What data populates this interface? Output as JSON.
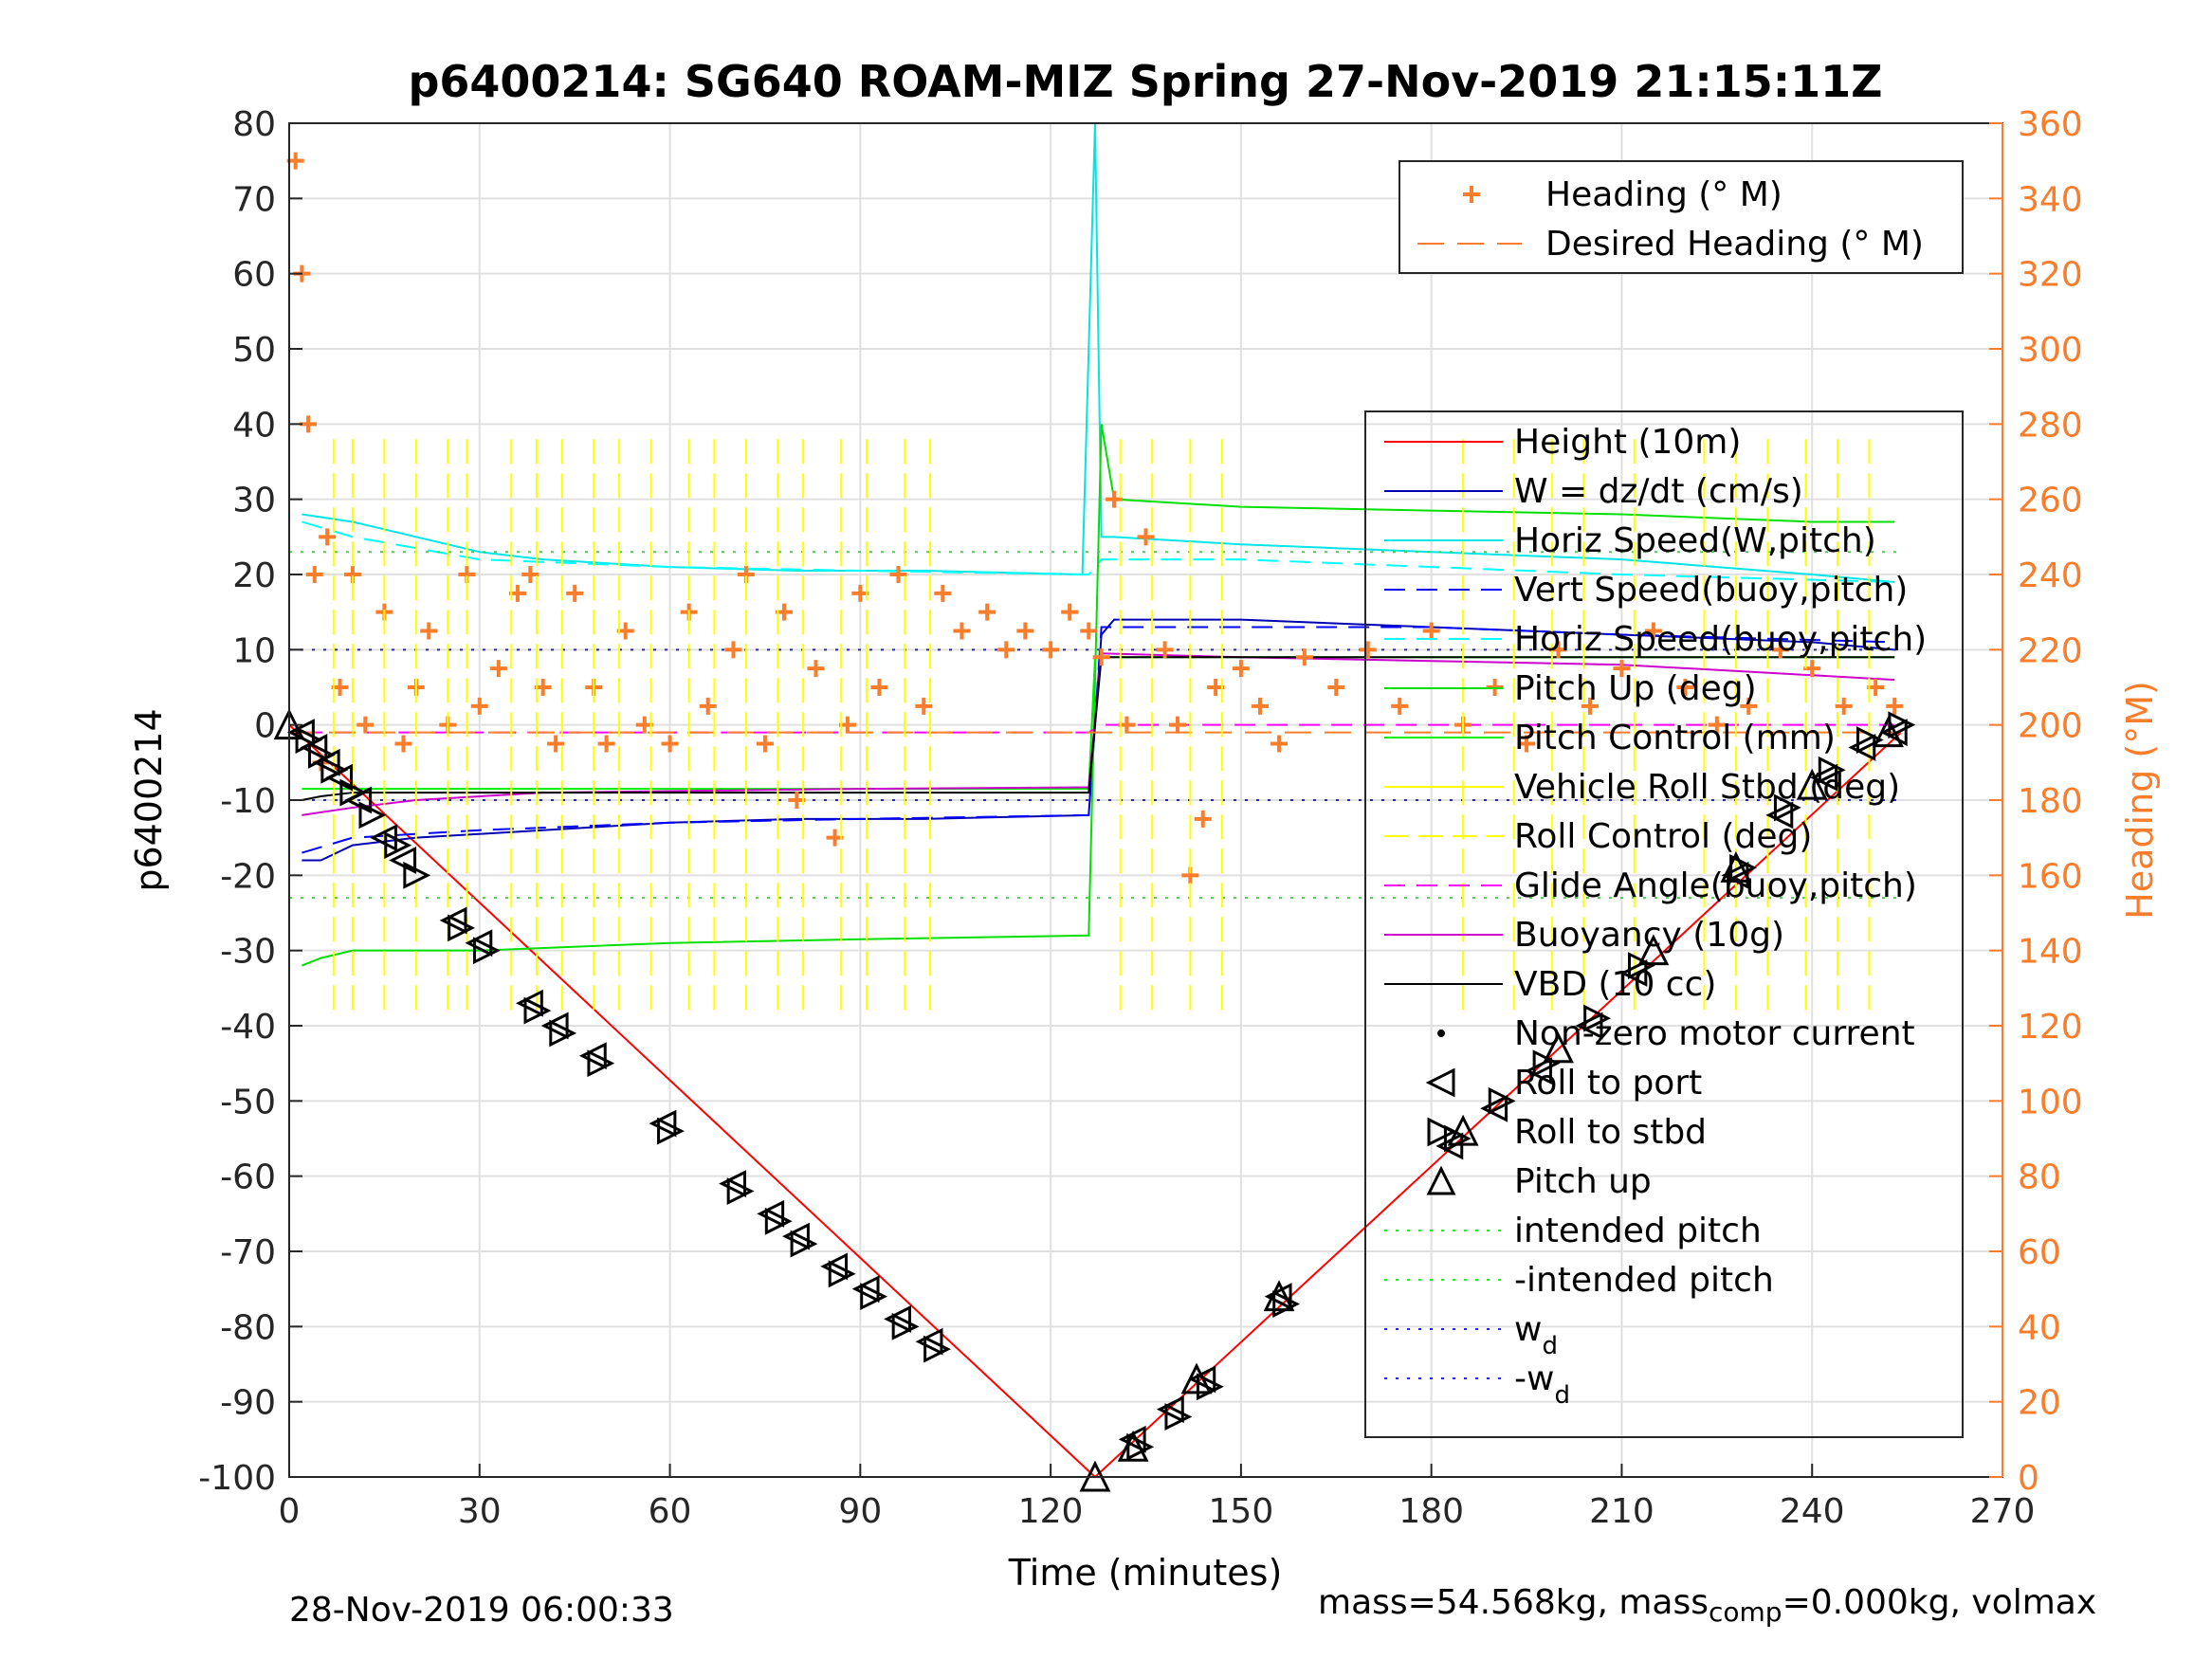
{
  "chart_data": {
    "type": "line",
    "title": "p6400214: SG640 ROAM-MIZ Spring 27-Nov-2019 21:15:11Z",
    "xlabel": "Time (minutes)",
    "ylabel": "p6400214",
    "y2label": "Heading (°M)",
    "xlim": [
      0,
      270
    ],
    "ylim": [
      -100,
      80
    ],
    "y2lim": [
      0,
      360
    ],
    "xticks": [
      0,
      30,
      60,
      90,
      120,
      150,
      180,
      210,
      240,
      270
    ],
    "yticks": [
      -100,
      -90,
      -80,
      -70,
      -60,
      -50,
      -40,
      -30,
      -20,
      -10,
      0,
      10,
      20,
      30,
      40,
      50,
      60,
      70,
      80
    ],
    "y2ticks": [
      0,
      20,
      40,
      60,
      80,
      100,
      120,
      140,
      160,
      180,
      200,
      220,
      240,
      260,
      280,
      300,
      320,
      340,
      360
    ],
    "grid": true,
    "colors": {
      "heading": "#f97d2b",
      "height": "#ff0000",
      "w": "#0000b3",
      "horiz_speed_w": "#00e5e5",
      "vert_speed_buoy": "#0000ff",
      "horiz_speed_buoy": "#00ffff",
      "pitch": "#00e000",
      "pitch_control": "#00ee00",
      "roll": "#ffff00",
      "glide": "#ff00ff",
      "buoyancy": "#cc00cc",
      "vbd": "#000000",
      "intended_pitch": "#33dd33",
      "wd": "#2222dd",
      "markers": "#000000"
    },
    "legend_heading": {
      "placement": "top-right",
      "entries": [
        "Heading (° M)",
        "Desired Heading (° M)"
      ]
    },
    "legend_main": {
      "placement": "right",
      "entries": [
        "Height (10m)",
        "W = dz/dt (cm/s)",
        "Horiz Speed(W,pitch)",
        "Vert Speed(buoy,pitch)",
        "Horiz Speed(buoy,pitch)",
        "Pitch Up (deg)",
        "Pitch Control (mm)",
        "Vehicle Roll Stbd (deg)",
        "Roll Control (deg)",
        "Glide Angle(buoy,pitch)",
        "Buoyancy (10g)",
        "VBD (10 cc)",
        "Non-zero motor current",
        "Roll to port",
        "Roll to stbd",
        "Pitch up",
        "intended pitch",
        "-intended pitch",
        "w",
        "-w"
      ],
      "subscript_d": "d"
    },
    "series": [
      {
        "name": "Height (10m)",
        "x": [
          0,
          127,
          254
        ],
        "y": [
          0,
          -100,
          -1
        ]
      },
      {
        "name": "W = dz/dt (cm/s)",
        "x": [
          2,
          5,
          10,
          20,
          40,
          60,
          80,
          100,
          126,
          128,
          130,
          150,
          180,
          210,
          240,
          253
        ],
        "y": [
          -18,
          -18,
          -16,
          -15,
          -14,
          -13,
          -12.5,
          -12.5,
          -12,
          12,
          14,
          14,
          13,
          12,
          11,
          10
        ]
      },
      {
        "name": "Horiz Speed(W,pitch)",
        "x": [
          2,
          10,
          20,
          30,
          40,
          60,
          80,
          100,
          125,
          127,
          128,
          130,
          150,
          180,
          210,
          240,
          253
        ],
        "y": [
          28,
          27,
          25,
          23,
          22,
          21,
          20.5,
          20.5,
          20,
          80,
          25,
          25,
          24,
          23,
          22,
          20,
          19
        ]
      },
      {
        "name": "Vert Speed(buoy,pitch)",
        "x": [
          2,
          10,
          30,
          60,
          90,
          126,
          128,
          150,
          180,
          210,
          253
        ],
        "y": [
          -17,
          -15,
          -14,
          -13,
          -12.5,
          -12,
          13,
          13,
          13,
          12,
          11
        ]
      },
      {
        "name": "Horiz Speed(buoy,pitch)",
        "x": [
          2,
          10,
          30,
          60,
          90,
          126,
          128,
          150,
          180,
          210,
          253
        ],
        "y": [
          27,
          25,
          22,
          21,
          20.5,
          20,
          22,
          22,
          21,
          20,
          19
        ]
      },
      {
        "name": "Pitch Up (deg)",
        "x": [
          2,
          5,
          10,
          30,
          60,
          90,
          126,
          128,
          130,
          150,
          180,
          210,
          240,
          253
        ],
        "y": [
          -32,
          -31,
          -30,
          -30,
          -29,
          -28.5,
          -28,
          40,
          30,
          29,
          28.5,
          28,
          27,
          27
        ]
      },
      {
        "name": "Pitch Control (mm)",
        "x": [
          2,
          126,
          127,
          253
        ],
        "y": [
          -8.5,
          -8.5,
          9,
          9
        ]
      },
      {
        "name": "Glide Angle(buoy,pitch)",
        "x": [
          2,
          126,
          128,
          253
        ],
        "y": [
          -1,
          -1,
          0,
          0
        ]
      },
      {
        "name": "Buoyancy (10g)",
        "x": [
          2,
          10,
          20,
          40,
          60,
          90,
          126,
          128,
          150,
          180,
          210,
          253
        ],
        "y": [
          -12,
          -11,
          -10,
          -9,
          -8.8,
          -8.5,
          -8.3,
          9.5,
          9,
          8.5,
          8,
          6
        ]
      },
      {
        "name": "VBD (10 cc)",
        "x": [
          2,
          5,
          10,
          126,
          128,
          253
        ],
        "y": [
          -10,
          -9.5,
          -9,
          -9,
          9,
          9
        ]
      },
      {
        "name": "intended pitch",
        "x": [
          0,
          254
        ],
        "y": [
          23,
          23
        ]
      },
      {
        "name": "-intended pitch",
        "x": [
          0,
          254
        ],
        "y": [
          -23,
          -23
        ]
      },
      {
        "name": "w_d",
        "x": [
          0,
          254
        ],
        "y": [
          10,
          10
        ]
      },
      {
        "name": "-w_d",
        "x": [
          0,
          254
        ],
        "y": [
          -10,
          -10
        ]
      },
      {
        "name": "Desired Heading (° M)",
        "x": [
          0,
          254
        ],
        "y2": [
          198,
          198
        ]
      },
      {
        "name": "Heading (° M)",
        "x": [
          1,
          2,
          3,
          4,
          5,
          6,
          8,
          10,
          12,
          15,
          18,
          20,
          22,
          25,
          28,
          30,
          33,
          36,
          38,
          40,
          42,
          45,
          48,
          50,
          53,
          56,
          60,
          63,
          66,
          70,
          72,
          75,
          78,
          80,
          83,
          86,
          88,
          90,
          93,
          96,
          100,
          103,
          106,
          110,
          113,
          116,
          120,
          123,
          126,
          128,
          130,
          132,
          135,
          138,
          140,
          142,
          144,
          146,
          150,
          153,
          156,
          160,
          165,
          170,
          175,
          180,
          185,
          190,
          195,
          200,
          205,
          210,
          215,
          220,
          225,
          230,
          235,
          240,
          245,
          250,
          253
        ],
        "y2": [
          350,
          320,
          280,
          240,
          190,
          250,
          210,
          240,
          200,
          230,
          195,
          210,
          225,
          200,
          240,
          205,
          215,
          235,
          240,
          210,
          195,
          235,
          210,
          195,
          225,
          200,
          195,
          230,
          205,
          220,
          240,
          195,
          230,
          180,
          215,
          170,
          200,
          235,
          210,
          240,
          205,
          235,
          225,
          230,
          220,
          225,
          220,
          230,
          225,
          218,
          260,
          200,
          250,
          220,
          200,
          160,
          175,
          210,
          215,
          205,
          195,
          218,
          210,
          220,
          205,
          225,
          200,
          210,
          195,
          220,
          205,
          215,
          225,
          210,
          200,
          205,
          220,
          215,
          205,
          210,
          205
        ]
      }
    ],
    "markers": {
      "roll_to_port": [
        [
          2,
          -1
        ],
        [
          4,
          -3
        ],
        [
          6,
          -5
        ],
        [
          8,
          -7
        ],
        [
          11,
          -10
        ],
        [
          15,
          -15
        ],
        [
          18,
          -18
        ],
        [
          26,
          -26
        ],
        [
          30,
          -29
        ],
        [
          38,
          -37
        ],
        [
          42,
          -40
        ],
        [
          48,
          -44
        ],
        [
          59,
          -53
        ],
        [
          70,
          -61
        ],
        [
          76,
          -65
        ],
        [
          80,
          -68
        ],
        [
          86,
          -72
        ],
        [
          91,
          -75
        ],
        [
          96,
          -79
        ],
        [
          101,
          -82
        ],
        [
          133,
          -95
        ],
        [
          139,
          -91
        ],
        [
          144,
          -87
        ],
        [
          156,
          -76
        ],
        [
          183,
          -56
        ],
        [
          190,
          -51
        ],
        [
          197,
          -46
        ],
        [
          205,
          -40
        ],
        [
          212,
          -33
        ],
        [
          228,
          -20
        ],
        [
          235,
          -12
        ],
        [
          242,
          -7
        ],
        [
          248,
          -3
        ],
        [
          253,
          -1
        ]
      ],
      "roll_to_stbd": [
        [
          3,
          -2
        ],
        [
          5,
          -4
        ],
        [
          7,
          -6
        ],
        [
          10,
          -9
        ],
        [
          13,
          -12
        ],
        [
          17,
          -16
        ],
        [
          20,
          -20
        ],
        [
          27,
          -27
        ],
        [
          31,
          -30
        ],
        [
          39,
          -38
        ],
        [
          43,
          -41
        ],
        [
          49,
          -45
        ],
        [
          60,
          -54
        ],
        [
          71,
          -62
        ],
        [
          77,
          -66
        ],
        [
          81,
          -69
        ],
        [
          87,
          -73
        ],
        [
          92,
          -76
        ],
        [
          97,
          -80
        ],
        [
          102,
          -83
        ],
        [
          134,
          -96
        ],
        [
          140,
          -92
        ],
        [
          145,
          -88
        ],
        [
          157,
          -77
        ],
        [
          184,
          -55
        ],
        [
          191,
          -50
        ],
        [
          198,
          -45
        ],
        [
          206,
          -39
        ],
        [
          213,
          -32
        ],
        [
          229,
          -19
        ],
        [
          236,
          -11
        ],
        [
          243,
          -6
        ],
        [
          249,
          -2
        ],
        [
          254,
          0
        ]
      ],
      "pitch_up": [
        [
          0,
          0
        ],
        [
          127,
          -100
        ],
        [
          133,
          -96
        ],
        [
          143,
          -87
        ],
        [
          156,
          -76
        ],
        [
          185,
          -54
        ],
        [
          200,
          -43
        ],
        [
          215,
          -30
        ],
        [
          228,
          -19
        ],
        [
          240,
          -8
        ],
        [
          252,
          -1
        ]
      ]
    },
    "annotations": {
      "timestamp": "28-Nov-2019 06:00:33",
      "mass_prefix": "mass=54.568kg, mass",
      "mass_sub": "comp",
      "mass_suffix": "=0.000kg, volmax"
    }
  }
}
